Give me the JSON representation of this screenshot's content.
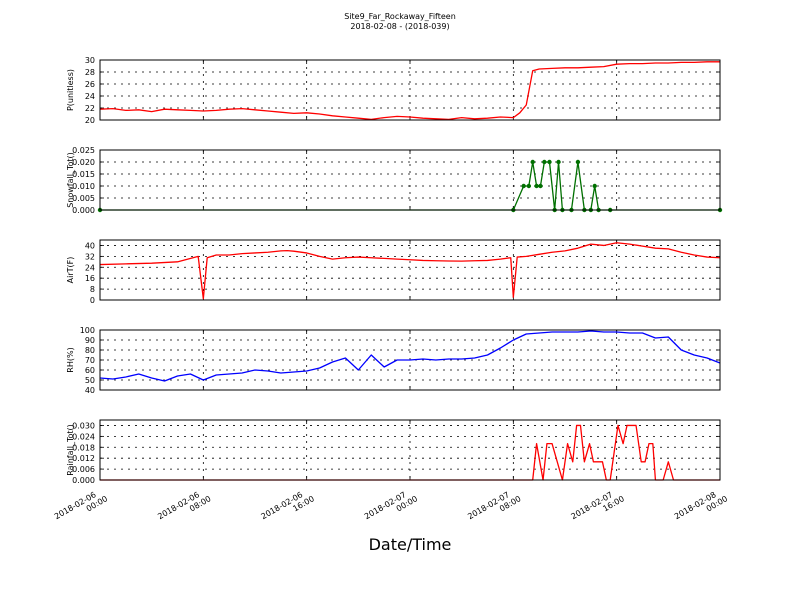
{
  "chart_data": {
    "type": "line",
    "title": "Site9_Far_Rockaway_Fifteen",
    "subtitle": "2018-02-08 - (2018-039)",
    "xlabel": "Date/Time",
    "x_ticks": [
      "2018-02-06 00:00",
      "2018-02-06 08:00",
      "2018-02-06 16:00",
      "2018-02-07 00:00",
      "2018-02-07 08:00",
      "2018-02-07 16:00",
      "2018-02-08 00:00"
    ],
    "x_range_hours": [
      0,
      48
    ],
    "grid": true,
    "panels": [
      {
        "ylabel": "P(unitless)",
        "color": "#ff0000",
        "markers": false,
        "ylim": [
          20,
          30
        ],
        "yticks": [
          "20",
          "22",
          "24",
          "26",
          "28",
          "30"
        ],
        "x": [
          0,
          1,
          2,
          3,
          4,
          5,
          6,
          7,
          8,
          9,
          10,
          11,
          12,
          13,
          14,
          15,
          16,
          17,
          18,
          19,
          20,
          21,
          22,
          23,
          24,
          25,
          26,
          27,
          28,
          29,
          30,
          31,
          32,
          32.5,
          33,
          33.5,
          34,
          35,
          36,
          37,
          38,
          39,
          40,
          41,
          42,
          43,
          44,
          45,
          46,
          47,
          48
        ],
        "values": [
          21.8,
          21.9,
          21.6,
          21.7,
          21.4,
          21.8,
          21.7,
          21.6,
          21.5,
          21.6,
          21.8,
          21.9,
          21.7,
          21.5,
          21.3,
          21.1,
          21.2,
          21.0,
          20.7,
          20.5,
          20.3,
          20.1,
          20.4,
          20.6,
          20.5,
          20.3,
          20.2,
          20.1,
          20.4,
          20.2,
          20.3,
          20.5,
          20.4,
          21.2,
          22.5,
          28.2,
          28.5,
          28.6,
          28.7,
          28.7,
          28.8,
          28.9,
          29.3,
          29.4,
          29.4,
          29.5,
          29.5,
          29.6,
          29.6,
          29.7,
          29.7
        ]
      },
      {
        "ylabel": "Snowfall_Tot()",
        "color": "#007000",
        "markers": true,
        "ylim": [
          0,
          0.025
        ],
        "yticks": [
          "0.000",
          "0.005",
          "0.010",
          "0.015",
          "0.020",
          "0.025"
        ],
        "x": [
          0,
          32,
          32.8,
          33.2,
          33.5,
          33.8,
          34.1,
          34.4,
          34.8,
          35.2,
          35.5,
          35.8,
          36.5,
          37.0,
          37.5,
          38.0,
          38.3,
          38.6,
          39.5,
          48
        ],
        "values": [
          0,
          0,
          0.01,
          0.01,
          0.02,
          0.01,
          0.01,
          0.02,
          0.02,
          0,
          0.02,
          0,
          0,
          0.02,
          0,
          0,
          0.01,
          0,
          0,
          0
        ]
      },
      {
        "ylabel": "AirT(F)",
        "color": "#ff0000",
        "markers": false,
        "ylim": [
          0,
          44
        ],
        "yticks": [
          "0",
          "8",
          "16",
          "24",
          "32",
          "40"
        ],
        "x": [
          0,
          2,
          4,
          6,
          7.6,
          8,
          8.3,
          9,
          10,
          11,
          12,
          13,
          14,
          14.5,
          15,
          16,
          17,
          18,
          19,
          20,
          21,
          22,
          23,
          24,
          25,
          26,
          27,
          28,
          29,
          30,
          31,
          31.8,
          32,
          32.3,
          33,
          34,
          35,
          36,
          37,
          38,
          39,
          40,
          41,
          42,
          43,
          44,
          45,
          46,
          47,
          48
        ],
        "values": [
          26,
          26.5,
          27,
          28,
          32,
          1,
          31,
          33,
          33,
          34,
          34.5,
          35,
          36,
          36.2,
          35.8,
          34.5,
          32,
          30,
          31,
          31.5,
          31,
          30.5,
          30,
          29.5,
          29,
          28.8,
          28.6,
          28.5,
          28.8,
          29,
          30,
          31,
          2,
          31.5,
          32,
          33.5,
          35,
          36,
          38,
          41,
          40,
          42,
          41,
          39.5,
          38,
          37.5,
          35,
          33,
          31.5,
          31
        ]
      },
      {
        "ylabel": "RH(%)",
        "color": "#0000ff",
        "markers": false,
        "ylim": [
          40,
          100
        ],
        "yticks": [
          "40",
          "50",
          "60",
          "70",
          "80",
          "90",
          "100"
        ],
        "x": [
          0,
          1,
          2,
          3,
          4,
          5,
          6,
          7,
          8,
          9,
          10,
          11,
          12,
          13,
          14,
          15,
          16,
          17,
          18,
          19,
          20,
          21,
          22,
          23,
          24,
          25,
          26,
          27,
          28,
          29,
          30,
          31,
          32,
          33,
          34,
          35,
          36,
          37,
          38,
          39,
          40,
          41,
          42,
          43,
          44,
          45,
          46,
          47,
          48
        ],
        "values": [
          52,
          51,
          53,
          56,
          52,
          49,
          54,
          56,
          50,
          55,
          56,
          57,
          60,
          59,
          57,
          58,
          59,
          62,
          68,
          72,
          60,
          75,
          63,
          70,
          70,
          71,
          70,
          71,
          71,
          72,
          75,
          82,
          90,
          96,
          97,
          98,
          98,
          98,
          99,
          98,
          98,
          97,
          97,
          92,
          93,
          80,
          75,
          72,
          67
        ]
      },
      {
        "ylabel": "Rainfall_Tot()",
        "color": "#ff0000",
        "markers": false,
        "ylim": [
          0,
          0.033
        ],
        "yticks": [
          "0.000",
          "0.006",
          "0.012",
          "0.018",
          "0.024",
          "0.030"
        ],
        "x": [
          0,
          33.5,
          33.8,
          34.3,
          34.6,
          35.0,
          35.4,
          35.8,
          36.2,
          36.6,
          36.9,
          37.2,
          37.5,
          37.9,
          38.2,
          38.5,
          38.9,
          39.2,
          39.5,
          39.8,
          40.1,
          40.5,
          40.8,
          41.1,
          41.5,
          41.9,
          42.2,
          42.5,
          42.8,
          43.0,
          43.2,
          43.6,
          44.0,
          44.4,
          48
        ],
        "values": [
          0,
          0,
          0.02,
          0,
          0.02,
          0.02,
          0.01,
          0,
          0.02,
          0.01,
          0.03,
          0.03,
          0.01,
          0.02,
          0.01,
          0.01,
          0.01,
          0,
          0,
          0.015,
          0.03,
          0.02,
          0.03,
          0.03,
          0.03,
          0.01,
          0.01,
          0.02,
          0.02,
          0,
          0,
          0,
          0.01,
          0,
          0
        ]
      }
    ]
  }
}
